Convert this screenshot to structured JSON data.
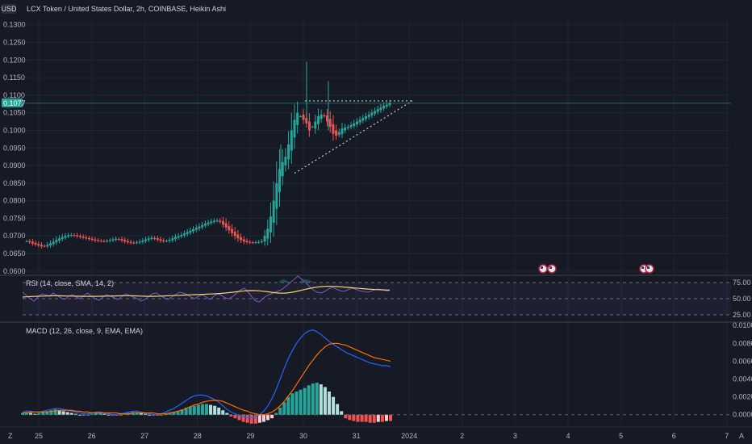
{
  "header": {
    "currency_badge": "USD",
    "symbol_title": "LCX Token / United States Dollar, 2h, COINBASE, Heikin Ashi"
  },
  "colors": {
    "background": "#161a25",
    "grid": "#1f2533",
    "up": "#26a69a",
    "down": "#ef5350",
    "price_line": "#26a69a",
    "rsi_line": "#7e57c2",
    "rsi_ma": "#f5d76e",
    "macd_line": "#2962ff",
    "signal_line": "#ff6d00",
    "pattern": "#c8c8c8"
  },
  "price_axis": {
    "ticks": [
      "0.1300",
      "0.1250",
      "0.1200",
      "0.1150",
      "0.1100",
      "0.1050",
      "0.1000",
      "0.0950",
      "0.0900",
      "0.0850",
      "0.0800",
      "0.0750",
      "0.0700",
      "0.0650",
      "0.0600"
    ],
    "last_price": "0.1077"
  },
  "time_axis": {
    "labels": [
      "25",
      "26",
      "27",
      "28",
      "29",
      "30",
      "31",
      "2024",
      "2",
      "3",
      "4",
      "5",
      "6",
      "7"
    ]
  },
  "rsi": {
    "title": "RSI (14, close, SMA, 14, 2)",
    "ticks": [
      "75.00",
      "50.00",
      "25.00"
    ]
  },
  "macd": {
    "title": "MACD (12, 26, close, 9, EMA, EMA)",
    "ticks": [
      "0.0100",
      "0.0080",
      "0.0060",
      "0.0040",
      "0.0020",
      "0.0000"
    ]
  },
  "chart_data": [
    {
      "type": "candlestick",
      "title": "LCX Token / United States Dollar, 2h, COINBASE, Heikin Ashi",
      "ylim": [
        0.0595,
        0.132
      ],
      "x_labels": [
        "25",
        "26",
        "27",
        "28",
        "29",
        "30",
        "31",
        "2024",
        "2",
        "3",
        "4",
        "5",
        "6",
        "7"
      ],
      "last_price": 0.1077,
      "close": [
        0.0685,
        0.0682,
        0.0678,
        0.0676,
        0.0673,
        0.067,
        0.0671,
        0.0675,
        0.0679,
        0.0684,
        0.0689,
        0.0693,
        0.0697,
        0.07,
        0.0702,
        0.0703,
        0.0701,
        0.0699,
        0.0697,
        0.0695,
        0.0693,
        0.0691,
        0.0689,
        0.0687,
        0.0686,
        0.0685,
        0.0685,
        0.0686,
        0.0688,
        0.069,
        0.0692,
        0.069,
        0.0687,
        0.0684,
        0.0682,
        0.068,
        0.068,
        0.0682,
        0.0684,
        0.0687,
        0.069,
        0.0693,
        0.0695,
        0.0692,
        0.0689,
        0.0686,
        0.0685,
        0.0686,
        0.0689,
        0.0693,
        0.0697,
        0.07,
        0.0703,
        0.0707,
        0.0711,
        0.0715,
        0.0719,
        0.0723,
        0.0727,
        0.0731,
        0.0735,
        0.0738,
        0.0741,
        0.0743,
        0.0744,
        0.074,
        0.0732,
        0.0724,
        0.0716,
        0.0708,
        0.07,
        0.0693,
        0.0688,
        0.0684,
        0.0682,
        0.0681,
        0.0681,
        0.0682,
        0.0683,
        0.0685,
        0.07,
        0.072,
        0.0755,
        0.08,
        0.085,
        0.089,
        0.091,
        0.0925,
        0.096,
        0.1,
        0.103,
        0.105,
        0.104,
        0.103,
        0.102,
        0.1,
        0.101,
        0.1025,
        0.104,
        0.1045,
        0.104,
        0.1025,
        0.101,
        0.099,
        0.0985,
        0.0995,
        0.1005,
        0.1008,
        0.101,
        0.1015,
        0.102,
        0.1025,
        0.103,
        0.1035,
        0.104,
        0.1045,
        0.105,
        0.1055,
        0.106,
        0.1065,
        0.107,
        0.1073,
        0.1077
      ],
      "pattern": "ascending triangle",
      "pattern_resistance": 0.1077,
      "pattern_support_start": 0.0878
    },
    {
      "type": "line",
      "title": "RSI (14, close, SMA, 14, 2)",
      "ylim": [
        25,
        75
      ],
      "bands": [
        70,
        50,
        30
      ],
      "series": [
        {
          "values": [
            58,
            54,
            50,
            47,
            52,
            56,
            55,
            53,
            57,
            54,
            51,
            49,
            53,
            55,
            52,
            50,
            54,
            57,
            53,
            50,
            48,
            52,
            55,
            53,
            51,
            49,
            53,
            56,
            54,
            52,
            50,
            47,
            49,
            53,
            56,
            57,
            54,
            51,
            49,
            52,
            55,
            58,
            57,
            55,
            52,
            50,
            53,
            55,
            52,
            49,
            53,
            56,
            54,
            51,
            50,
            53,
            57,
            61,
            63,
            58,
            52,
            47,
            46,
            51,
            54,
            56,
            58,
            60,
            62,
            66,
            70,
            74,
            78,
            74,
            70,
            65,
            61,
            58,
            57,
            59,
            62,
            64,
            62,
            60,
            59,
            61,
            63,
            62,
            60,
            59,
            58,
            59,
            61,
            62,
            61,
            60,
            60
          ]
        },
        {
          "values": [
            52,
            52.3,
            52.6,
            52.8,
            53,
            53.2,
            53.3,
            53.5,
            53.6,
            53.6,
            53.5,
            53.4,
            53.3,
            53.2,
            53.1,
            53,
            52.9,
            52.9,
            52.9,
            52.9,
            53,
            53.1,
            53.2,
            53.3,
            53.4,
            53.5,
            53.6,
            53.7,
            53.7,
            53.6,
            53.4,
            53.2,
            53,
            52.9,
            52.9,
            53,
            53.2,
            53.4,
            53.6,
            53.8,
            54,
            54.2,
            54.4,
            54.6,
            54.8,
            55,
            55.2,
            55.4,
            55.6,
            55.8,
            56,
            56.3,
            56.6,
            57,
            57.5,
            58,
            58.6,
            59.2,
            59.7,
            60,
            60.1,
            60,
            59.7,
            59.2,
            58.6,
            58,
            57.4,
            57,
            56.8,
            57,
            57.6,
            58.4,
            59.5,
            60.6,
            61.7,
            62.7,
            63.6,
            64.3,
            64.9,
            65.3,
            65.4,
            65.3,
            65.1,
            64.8,
            64.4,
            64,
            63.6,
            63.2,
            62.8,
            62.4,
            62,
            61.7,
            61.4,
            61.2,
            61,
            60.8,
            60.6
          ]
        }
      ]
    },
    {
      "type": "line",
      "title": "MACD (12, 26, close, 9, EMA, EMA)",
      "ylim": [
        -0.0012,
        0.0102
      ],
      "histogram": [
        0.0002,
        0.0003,
        0.0002,
        0.0001,
        0.0002,
        0.0003,
        0.0004,
        0.0005,
        0.0006,
        0.0005,
        0.0004,
        0.0003,
        0.0002,
        0.0001,
        0.0,
        -0.0001,
        0.0,
        0.0001,
        0.0002,
        0.0002,
        0.0001,
        0.0,
        -0.0001,
        -0.0001,
        0.0,
        0.0001,
        0.0002,
        0.0003,
        0.0003,
        0.0002,
        0.0001,
        0.0,
        -0.0001,
        -0.0001,
        0.0,
        0.0001,
        0.0002,
        0.0003,
        0.0004,
        0.0006,
        0.0008,
        0.0009,
        0.001,
        0.0011,
        0.0012,
        0.0012,
        0.0011,
        0.001,
        0.0008,
        0.0005,
        0.0002,
        -0.0002,
        -0.0004,
        -0.0006,
        -0.0008,
        -0.0009,
        -0.001,
        -0.001,
        -0.0009,
        -0.0008,
        -0.0006,
        -0.0004,
        0.0002,
        0.0008,
        0.0014,
        0.002,
        0.0024,
        0.0026,
        0.0028,
        0.003,
        0.0033,
        0.0035,
        0.0036,
        0.0034,
        0.0031,
        0.0026,
        0.002,
        0.0012,
        0.0004,
        -0.0004,
        -0.0006,
        -0.0007,
        -0.0008,
        -0.0008,
        -0.0008,
        -0.0009,
        -0.0009,
        -0.0008,
        -0.0008,
        -0.0007,
        -0.0007
      ],
      "series": [
        {
          "values": [
            0.0003,
            0.0004,
            0.0004,
            0.0003,
            0.0003,
            0.0004,
            0.0005,
            0.0006,
            0.0007,
            0.0007,
            0.0006,
            0.0005,
            0.0004,
            0.0003,
            0.0002,
            0.0001,
            0.0001,
            0.0002,
            0.0003,
            0.0003,
            0.0002,
            0.0001,
            0.0,
            0.0,
            0.0001,
            0.0002,
            0.0003,
            0.0004,
            0.0004,
            0.0003,
            0.0002,
            0.0001,
            0.0,
            0.0,
            0.0001,
            0.0003,
            0.0005,
            0.0007,
            0.001,
            0.0013,
            0.0016,
            0.0019,
            0.0021,
            0.0022,
            0.0022,
            0.0021,
            0.0019,
            0.0017,
            0.0014,
            0.001,
            0.0006,
            0.0003,
            0.0001,
            -0.0001,
            -0.0002,
            -0.0003,
            -0.0003,
            -0.0002,
            0.0,
            0.0004,
            0.001,
            0.0018,
            0.0028,
            0.004,
            0.0052,
            0.0063,
            0.0072,
            0.008,
            0.0086,
            0.0091,
            0.0094,
            0.0095,
            0.0093,
            0.009,
            0.0086,
            0.0082,
            0.0079,
            0.0076,
            0.0073,
            0.007,
            0.0068,
            0.0066,
            0.0064,
            0.0062,
            0.006,
            0.0058,
            0.0057,
            0.0056,
            0.0055,
            0.0055,
            0.0054
          ]
        },
        {
          "values": [
            0.0002,
            0.0002,
            0.0003,
            0.0003,
            0.0003,
            0.0003,
            0.0003,
            0.0004,
            0.0004,
            0.0005,
            0.0005,
            0.0005,
            0.0005,
            0.0004,
            0.0004,
            0.0003,
            0.0003,
            0.0002,
            0.0002,
            0.0002,
            0.0002,
            0.0002,
            0.0002,
            0.0002,
            0.0001,
            0.0001,
            0.0001,
            0.0002,
            0.0002,
            0.0002,
            0.0002,
            0.0002,
            0.0002,
            0.0001,
            0.0001,
            0.0001,
            0.0002,
            0.0003,
            0.0004,
            0.0005,
            0.0007,
            0.0009,
            0.0011,
            0.0012,
            0.0014,
            0.0015,
            0.0016,
            0.0016,
            0.0016,
            0.0015,
            0.0013,
            0.0011,
            0.0009,
            0.0007,
            0.0005,
            0.0004,
            0.0002,
            0.0001,
            0.0,
            0.0,
            0.0001,
            0.0003,
            0.0006,
            0.001,
            0.0015,
            0.0021,
            0.0027,
            0.0034,
            0.0041,
            0.0048,
            0.0055,
            0.0061,
            0.0067,
            0.0072,
            0.0076,
            0.0079,
            0.008,
            0.008,
            0.0079,
            0.0078,
            0.0076,
            0.0074,
            0.0072,
            0.007,
            0.0068,
            0.0066,
            0.0064,
            0.0063,
            0.0062,
            0.0061,
            0.006
          ]
        }
      ]
    }
  ]
}
